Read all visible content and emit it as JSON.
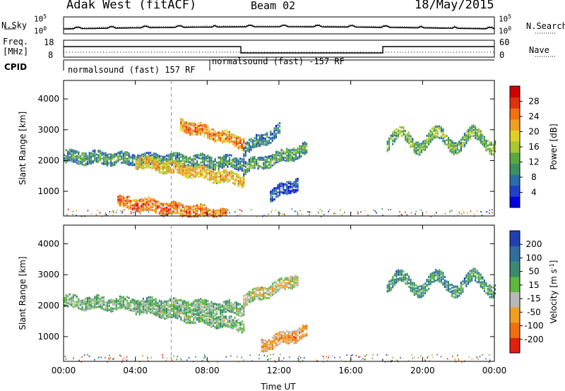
{
  "header": {
    "station": "Adak West (fitACF)",
    "beam": "Beam 02",
    "date": "18/May/2015"
  },
  "strip": {
    "left_top": "N.Sky",
    "left_top_ticks": [
      "10^5",
      "10^0"
    ],
    "right_top": "N.Search",
    "right_top_ticks": [
      "10^5",
      "10^0"
    ],
    "left_mid": "Freq.",
    "left_mid_unit": "[MHz]",
    "left_mid_ticks": [
      "18",
      "8"
    ],
    "right_mid": "Nave",
    "right_mid_ticks": [
      "60",
      "0"
    ],
    "cpid_label": "CPID",
    "cpid_1": "normalsound (fast) 157 RF",
    "cpid_2": "normalsound (fast) -157 RF"
  },
  "chart_data": [
    {
      "type": "heatmap",
      "panel": "power",
      "ylabel": "Slant Range [km]",
      "xlabel": "Time UT",
      "x_ticks": [
        "00:00",
        "04:00",
        "08:00",
        "12:00",
        "16:00",
        "20:00",
        "00:00"
      ],
      "y_ticks": [
        1000,
        2000,
        3000,
        4000
      ],
      "ylim": [
        200,
        4600
      ],
      "xlim_hours": [
        0,
        24
      ],
      "colorbar": {
        "label": "Power [dB]",
        "ticks": [
          4,
          8,
          12,
          16,
          20,
          24,
          28
        ],
        "colors": [
          "#0000e0",
          "#2040c8",
          "#2a6ea8",
          "#3a9060",
          "#5aa840",
          "#a8c830",
          "#e0d020",
          "#f0a020",
          "#f07010",
          "#e03010",
          "#d00000"
        ]
      },
      "bands": [
        {
          "x": [
            0.0,
            10.0
          ],
          "y": [
            2150,
            1950
          ],
          "level": 0.35
        },
        {
          "x": [
            4.0,
            10.0
          ],
          "y": [
            2000,
            1400
          ],
          "level": 0.7
        },
        {
          "x": [
            6.5,
            10.0
          ],
          "y": [
            3200,
            2600
          ],
          "level": 0.8
        },
        {
          "x": [
            10.0,
            13.5
          ],
          "y": [
            1800,
            2400
          ],
          "level": 0.4
        },
        {
          "x": [
            10.0,
            12.0
          ],
          "y": [
            2400,
            3000
          ],
          "level": 0.3
        },
        {
          "x": [
            11.5,
            13.0
          ],
          "y": [
            900,
            1300
          ],
          "level": 0.2
        },
        {
          "x": [
            18.0,
            24.0
          ],
          "y": [
            2700,
            2700
          ],
          "level": 0.45
        },
        {
          "x": [
            3.0,
            9.0
          ],
          "y": [
            700,
            250
          ],
          "level": 0.85
        }
      ]
    },
    {
      "type": "heatmap",
      "panel": "velocity",
      "ylabel": "Slant Range [km]",
      "xlabel": "Time UT",
      "x_ticks": [
        "00:00",
        "04:00",
        "08:00",
        "12:00",
        "16:00",
        "20:00",
        "00:00"
      ],
      "y_ticks": [
        1000,
        2000,
        3000,
        4000
      ],
      "ylim": [
        200,
        4600
      ],
      "xlim_hours": [
        0,
        24
      ],
      "colorbar": {
        "label": "Velocity [m s^-1]",
        "ticks": [
          "200",
          "100",
          "50",
          "15",
          "-15",
          "-50",
          "-100",
          "-200"
        ],
        "colors": [
          "#2040b0",
          "#2f6fa0",
          "#3a8a70",
          "#5db840",
          "#b8b8b8",
          "#f0a020",
          "#f07010",
          "#e02010"
        ]
      },
      "bands": [
        {
          "x": [
            0.0,
            10.0
          ],
          "y": [
            2150,
            1950
          ],
          "level": 0.5
        },
        {
          "x": [
            4.0,
            10.0
          ],
          "y": [
            2000,
            1400
          ],
          "level": 0.5
        },
        {
          "x": [
            10.0,
            13.0
          ],
          "y": [
            2200,
            2900
          ],
          "level": 0.62
        },
        {
          "x": [
            11.0,
            13.5
          ],
          "y": [
            750,
            1200
          ],
          "level": 0.8
        },
        {
          "x": [
            18.0,
            24.0
          ],
          "y": [
            2750,
            2750
          ],
          "level": 0.35
        }
      ]
    }
  ]
}
